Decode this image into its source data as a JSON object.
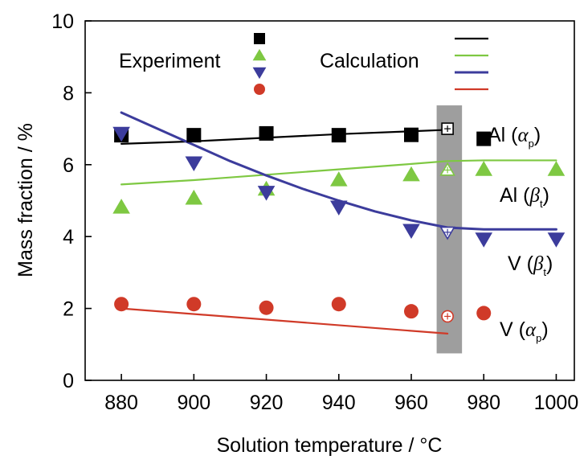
{
  "chart_data": {
    "type": "line",
    "xlabel": "Solution temperature / °C",
    "ylabel": "Mass fraction / %",
    "xlim": [
      870,
      1005
    ],
    "ylim": [
      0,
      10
    ],
    "xticks": [
      880,
      900,
      920,
      940,
      960,
      980,
      1000
    ],
    "yticks": [
      0,
      2,
      4,
      6,
      8,
      10
    ],
    "highlight_band": {
      "x_from": 967,
      "x_to": 974,
      "y_from": 0.75,
      "y_to": 7.65,
      "color": "#999999"
    },
    "legend": {
      "experiment_label": "Experiment",
      "calculation_label": "Calculation"
    },
    "series": [
      {
        "label_main": "Al (",
        "label_symbol": "α",
        "label_sub": "p",
        "label_close": ")",
        "color": "#000000",
        "marker": "square",
        "experiment": {
          "x": [
            880,
            900,
            920,
            940,
            960,
            980
          ],
          "y": [
            6.82,
            6.82,
            6.87,
            6.82,
            6.83,
            6.72
          ]
        },
        "calculation": {
          "x": [
            880,
            900,
            920,
            940,
            960,
            970
          ],
          "y": [
            6.58,
            6.65,
            6.75,
            6.85,
            6.93,
            6.97
          ]
        },
        "open_point": {
          "x": 970,
          "y": 7.0
        }
      },
      {
        "label_main": "Al (",
        "label_symbol": "β",
        "label_sub": "t",
        "label_close": ")",
        "color": "#7ec842",
        "marker": "triangle-up",
        "experiment": {
          "x": [
            880,
            900,
            920,
            940,
            960,
            980,
            1000
          ],
          "y": [
            4.82,
            5.07,
            5.32,
            5.58,
            5.72,
            5.87,
            5.87
          ]
        },
        "calculation": {
          "x": [
            880,
            900,
            920,
            940,
            960,
            970,
            980,
            1000
          ],
          "y": [
            5.45,
            5.57,
            5.72,
            5.87,
            6.02,
            6.1,
            6.12,
            6.12
          ]
        },
        "open_point": {
          "x": 970,
          "y": 5.85
        }
      },
      {
        "label_main": "V (",
        "label_symbol": "β",
        "label_sub": "t",
        "label_close": ")",
        "color": "#3c3c9c",
        "marker": "triangle-down",
        "experiment": {
          "x": [
            880,
            900,
            920,
            940,
            960,
            980,
            1000
          ],
          "y": [
            6.87,
            6.05,
            5.23,
            4.82,
            4.17,
            3.93,
            3.93
          ]
        },
        "calculation": {
          "x": [
            880,
            890,
            900,
            910,
            920,
            930,
            940,
            950,
            960,
            970,
            980,
            990,
            1000
          ],
          "y": [
            7.45,
            7.0,
            6.55,
            6.1,
            5.7,
            5.33,
            5.0,
            4.7,
            4.45,
            4.25,
            4.2,
            4.2,
            4.2
          ]
        },
        "open_point": {
          "x": 970,
          "y": 4.12
        }
      },
      {
        "label_main": "V (",
        "label_symbol": "α",
        "label_sub": "p",
        "label_close": ")",
        "color": "#d03a28",
        "marker": "circle",
        "experiment": {
          "x": [
            880,
            900,
            920,
            940,
            960,
            980
          ],
          "y": [
            2.12,
            2.12,
            2.02,
            2.12,
            1.92,
            1.87
          ]
        },
        "calculation": {
          "x": [
            880,
            970
          ],
          "y": [
            2.0,
            1.3
          ]
        },
        "open_point": {
          "x": 970,
          "y": 1.78
        }
      }
    ]
  }
}
